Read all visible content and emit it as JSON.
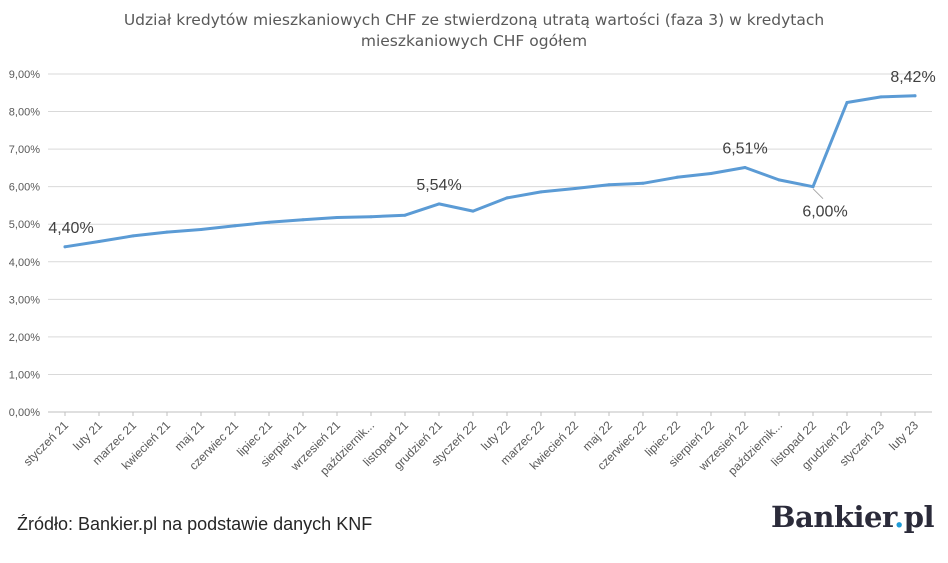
{
  "title_line1": "Udział kredytów mieszkaniowych CHF ze stwierdzoną utratą wartości (faza 3) w kredytach",
  "title_line2": "mieszkaniowych CHF ogółem",
  "source": "Źródło: Bankier.pl na podstawie danych KNF",
  "logo": {
    "main": "Bankier",
    "dot": ".",
    "suffix": "pl"
  },
  "colors": {
    "line": "#5b9bd5",
    "grid": "#d9d9d9",
    "text": "#595959"
  },
  "chart_data": {
    "type": "line",
    "title": "Udział kredytów mieszkaniowych CHF ze stwierdzoną utratą wartości (faza 3) w kredytach mieszkaniowych CHF ogółem",
    "xlabel": "",
    "ylabel": "",
    "ylim": [
      0,
      9
    ],
    "yticks": [
      "0,00%",
      "1,00%",
      "2,00%",
      "3,00%",
      "4,00%",
      "5,00%",
      "6,00%",
      "7,00%",
      "8,00%",
      "9,00%"
    ],
    "grid": true,
    "legend": "none",
    "categories": [
      "styczeń 21",
      "luty 21",
      "marzec 21",
      "kwiecień 21",
      "maj 21",
      "czerwiec 21",
      "lipiec 21",
      "sierpień 21",
      "wrzesień 21",
      "październik...",
      "listopad 21",
      "grudzień 21",
      "styczeń 22",
      "luty 22",
      "marzec 22",
      "kwiecień 22",
      "maj 22",
      "czerwiec 22",
      "lipiec 22",
      "sierpień 22",
      "wrzesień 22",
      "październik...",
      "listopad 22",
      "grudzień 22",
      "styczeń 23",
      "luty 23"
    ],
    "values": [
      4.4,
      4.54,
      4.69,
      4.79,
      4.86,
      4.96,
      5.05,
      5.12,
      5.18,
      5.2,
      5.24,
      5.54,
      5.35,
      5.7,
      5.86,
      5.95,
      6.05,
      6.09,
      6.25,
      6.35,
      6.51,
      6.18,
      6.0,
      8.24,
      8.39,
      8.42
    ],
    "data_labels": [
      {
        "index": 0,
        "text": "4,40%",
        "side": "above"
      },
      {
        "index": 11,
        "text": "5,54%",
        "side": "above"
      },
      {
        "index": 20,
        "text": "6,51%",
        "side": "above"
      },
      {
        "index": 22,
        "text": "6,00%",
        "side": "below"
      },
      {
        "index": 25,
        "text": "8,42%",
        "side": "above"
      }
    ]
  }
}
